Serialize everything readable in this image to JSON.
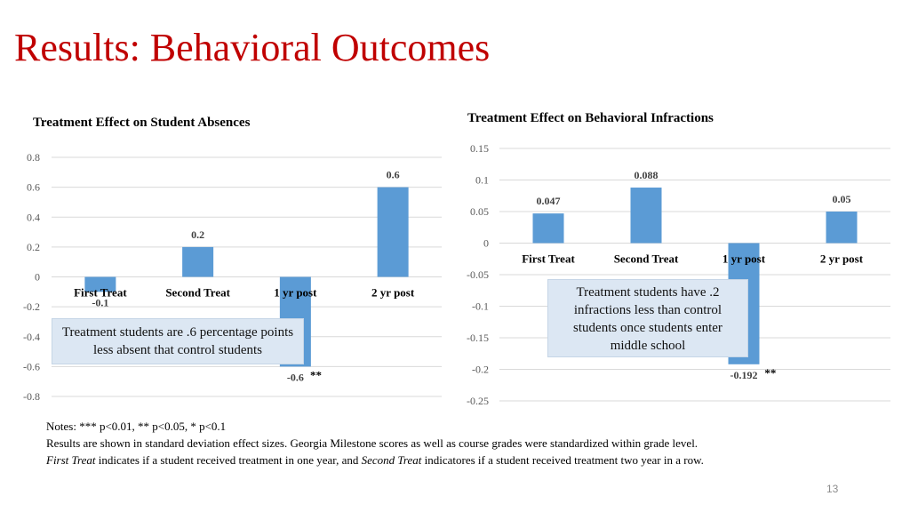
{
  "title": "Results: Behavioral Outcomes",
  "chart_data": [
    {
      "type": "bar",
      "title": "Treatment Effect on Student Absences",
      "categories": [
        "First Treat",
        "Second Treat",
        "1 yr post",
        "2 yr post"
      ],
      "values": [
        -0.1,
        0.2,
        -0.6,
        0.6
      ],
      "data_labels": [
        "-0.1",
        "0.2",
        "-0.6",
        "0.6"
      ],
      "significance": [
        "",
        "",
        "**",
        ""
      ],
      "yticks": [
        "0.8",
        "0.6",
        "0.4",
        "0.2",
        "0",
        "-0.2",
        "-0.4",
        "-0.6",
        "-0.8"
      ],
      "ylim": [
        -0.8,
        0.8
      ],
      "bar_color": "#5b9bd5",
      "xlabel": "",
      "ylabel": ""
    },
    {
      "type": "bar",
      "title": "Treatment Effect on Behavioral Infractions",
      "categories": [
        "First Treat",
        "Second Treat",
        "1 yr post",
        "2 yr post"
      ],
      "values": [
        0.047,
        0.088,
        -0.192,
        0.05
      ],
      "data_labels": [
        "0.047",
        "0.088",
        "-0.192",
        "0.05"
      ],
      "significance": [
        "",
        "",
        "**",
        ""
      ],
      "yticks": [
        "0.15",
        "0.1",
        "0.05",
        "0",
        "-0.05",
        "-0.1",
        "-0.15",
        "-0.2",
        "-0.25"
      ],
      "ylim": [
        -0.25,
        0.15
      ],
      "bar_color": "#5b9bd5",
      "xlabel": "",
      "ylabel": ""
    }
  ],
  "callouts": {
    "absences": "Treatment students are .6 percentage points less absent that control students",
    "infractions": "Treatment students have .2 infractions less than control students once students enter middle school"
  },
  "notes": {
    "line1": "Notes: *** p<0.01, ** p<0.05, * p<0.1",
    "line2": "Results are shown in standard deviation effect sizes. Georgia Milestone scores as well as course grades were standardized within grade level.",
    "line3_em1": "First Treat",
    "line3_a": " indicates if a student received treatment in one year, and ",
    "line3_em2": "Second Treat",
    "line3_b": " indicatores if a student received treatment two year in a row."
  },
  "slide_number": "13"
}
